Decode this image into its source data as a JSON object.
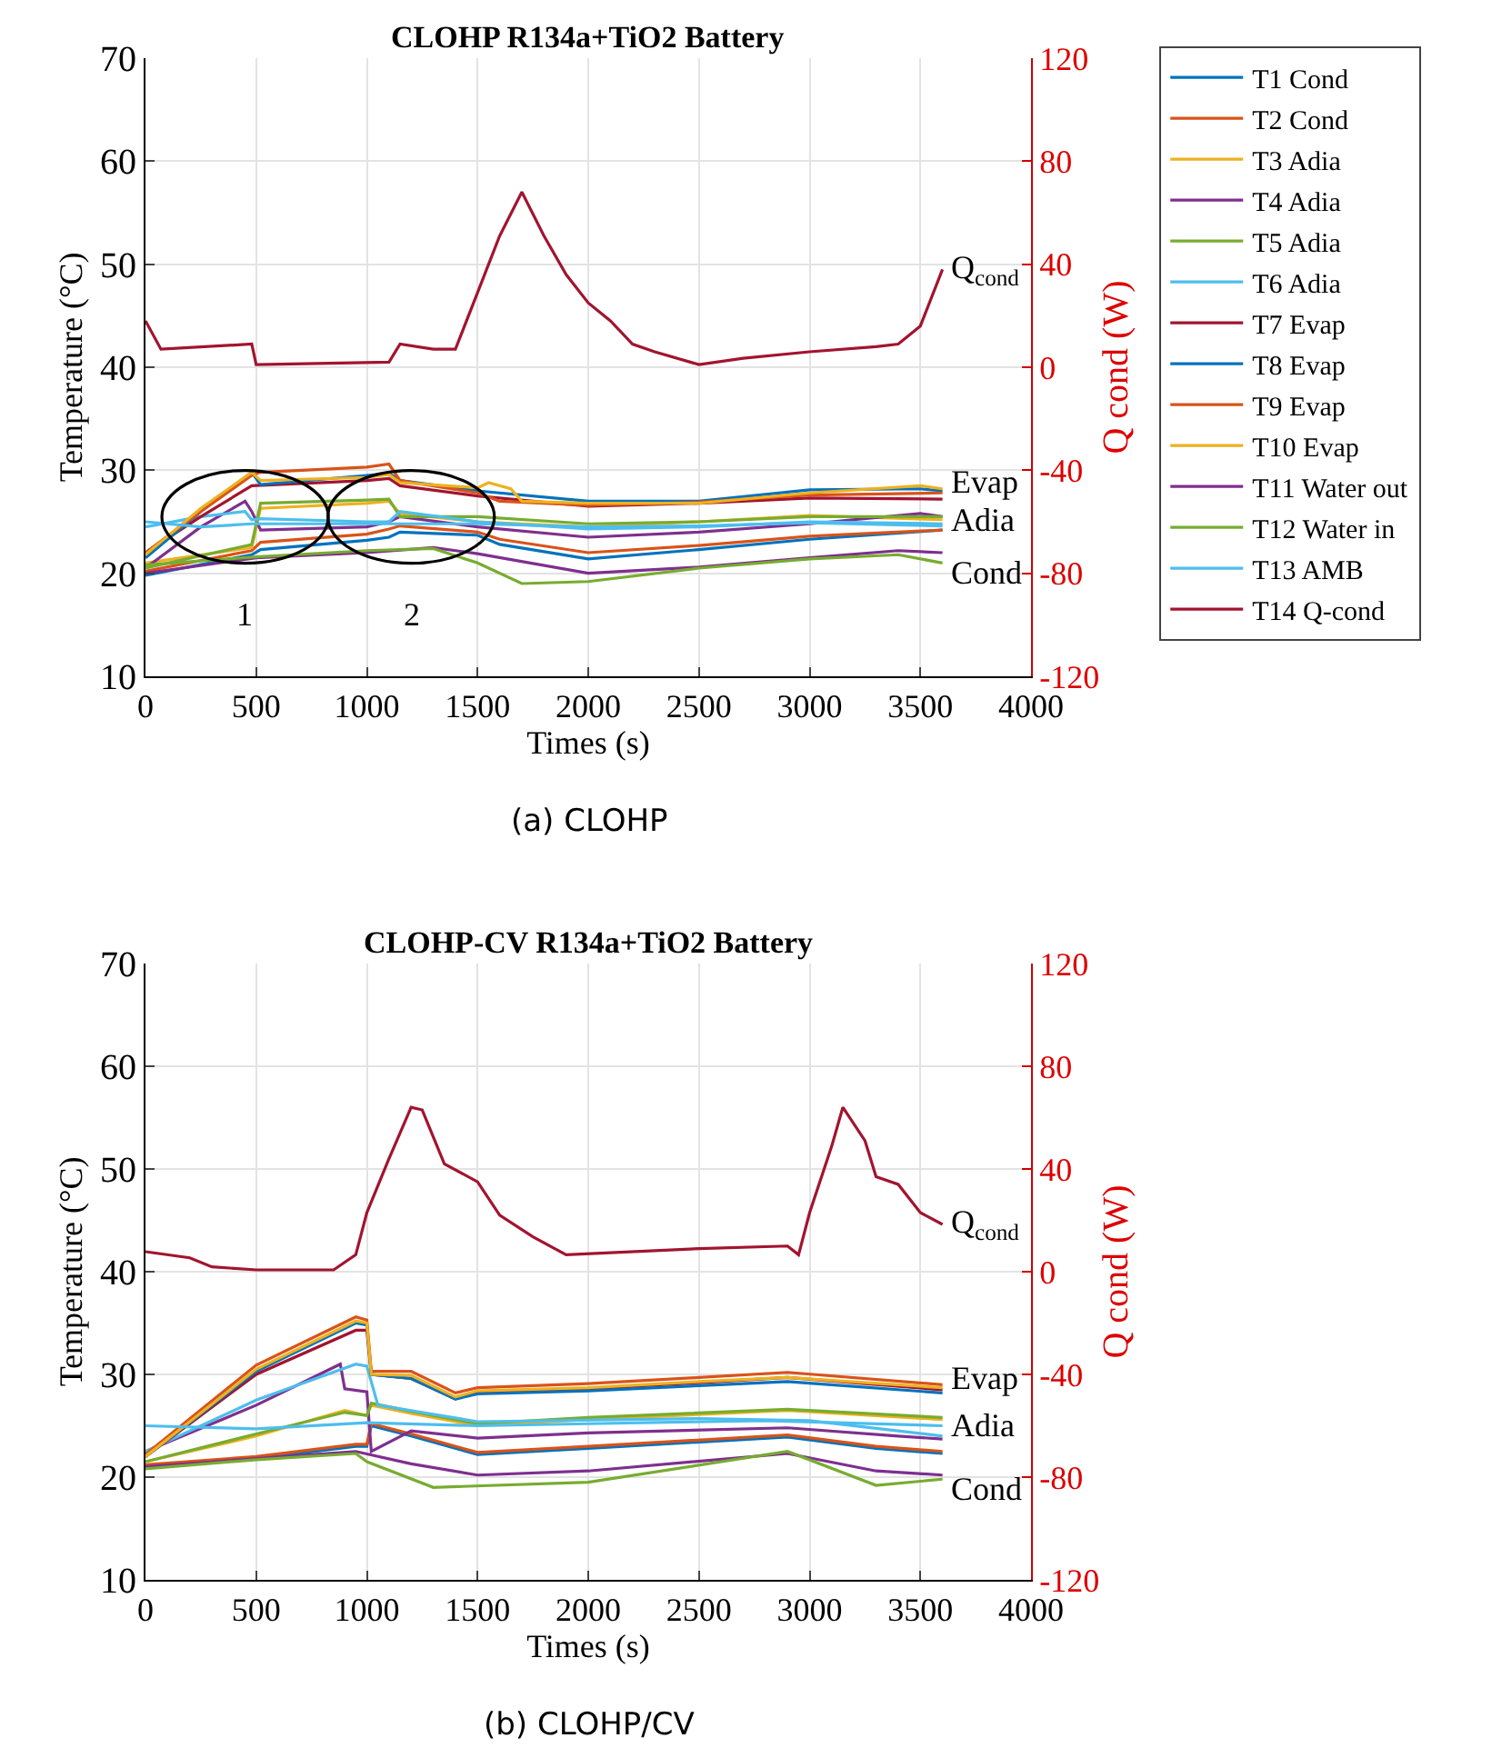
{
  "chart_data": [
    {
      "type": "line",
      "title": "CLOHP R134a+TiO2 Battery",
      "xlabel": "Times (s)",
      "ylabel": "Temperature (°C)",
      "y2label": "Q cond (W)",
      "xlim": [
        0,
        4000
      ],
      "xticks": [
        0,
        500,
        1000,
        1500,
        2000,
        2500,
        3000,
        3500,
        4000
      ],
      "ylim": [
        10,
        70
      ],
      "yticks": [
        10,
        20,
        30,
        40,
        50,
        60,
        70
      ],
      "y2lim": [
        -120,
        120
      ],
      "y2ticks": [
        -120,
        -80,
        -40,
        0,
        40,
        80,
        120
      ],
      "grid": true,
      "legend": "right",
      "marker": "none",
      "line_style": "solid",
      "series": [
        {
          "name": "T1 Cond",
          "color": "#0072bd",
          "x": [
            0,
            480,
            520,
            1000,
            1100,
            1150,
            1500,
            1600,
            2000,
            2500,
            3000,
            3600
          ],
          "values": [
            19.8,
            21.8,
            22.3,
            23.2,
            23.5,
            24,
            23.7,
            22.8,
            21.4,
            22.3,
            23.3,
            24.2
          ]
        },
        {
          "name": "T2 Cond",
          "color": "#d95319",
          "x": [
            0,
            480,
            520,
            1000,
            1100,
            1150,
            1500,
            1600,
            2000,
            2500,
            3000,
            3600
          ],
          "values": [
            20.2,
            22.2,
            23,
            23.8,
            24.3,
            24.6,
            24,
            23.3,
            22,
            22.7,
            23.6,
            24.2
          ]
        },
        {
          "name": "T3 Adia",
          "color": "#edb120",
          "x": [
            0,
            480,
            520,
            1000,
            1100,
            1150,
            1500,
            2000,
            2500,
            3000,
            3600
          ],
          "values": [
            21,
            22.5,
            26.3,
            26.8,
            27,
            25.8,
            25,
            24.5,
            25,
            25.6,
            25.2
          ]
        },
        {
          "name": "T4 Adia",
          "color": "#7e2f8e",
          "x": [
            0,
            250,
            450,
            480,
            520,
            1000,
            1100,
            1150,
            1500,
            2000,
            2500,
            3000,
            3500,
            3600
          ],
          "values": [
            20.5,
            24.5,
            27,
            26,
            24.2,
            24.5,
            25,
            25.5,
            24.5,
            23.5,
            24,
            24.8,
            25.8,
            25.5
          ]
        },
        {
          "name": "T5 Adia",
          "color": "#77ac30",
          "x": [
            0,
            480,
            520,
            1000,
            1100,
            1150,
            1500,
            2000,
            2500,
            3000,
            3600
          ],
          "values": [
            20.5,
            22.8,
            26.8,
            27.1,
            27.2,
            25.5,
            25.5,
            24.8,
            25,
            25.5,
            25.5
          ]
        },
        {
          "name": "T6 Adia",
          "color": "#4dbeee",
          "x": [
            0,
            250,
            450,
            480,
            520,
            1000,
            1100,
            1150,
            1500,
            2000,
            2500,
            3000,
            3600
          ],
          "values": [
            24.5,
            25.5,
            26,
            25.2,
            25.3,
            25,
            25,
            26,
            25,
            24.3,
            24.5,
            25,
            24.8
          ]
        },
        {
          "name": "T7 Evap",
          "color": "#a2142f",
          "x": [
            0,
            250,
            480,
            1000,
            1100,
            1150,
            1500,
            2000,
            2500,
            3000,
            3600
          ],
          "values": [
            22,
            25.5,
            28.5,
            29,
            29.2,
            28.5,
            27.5,
            26.5,
            26.8,
            27.3,
            27.2
          ]
        },
        {
          "name": "T8 Evap",
          "color": "#0072bd",
          "x": [
            0,
            250,
            480,
            520,
            1000,
            1100,
            1150,
            1500,
            2000,
            2500,
            3000,
            3500,
            3600
          ],
          "values": [
            21.5,
            26,
            29.8,
            28.6,
            29.5,
            29.7,
            29,
            28,
            27,
            27,
            28.1,
            28.2,
            28
          ]
        },
        {
          "name": "T9 Evap",
          "color": "#d95319",
          "x": [
            0,
            250,
            480,
            520,
            1000,
            1100,
            1150,
            1500,
            1600,
            2000,
            2500,
            3000,
            3600
          ],
          "values": [
            22,
            26,
            29.5,
            29.8,
            30.3,
            30.6,
            29,
            27.8,
            27,
            26.6,
            26.9,
            27.6,
            27.8
          ]
        },
        {
          "name": "T10 Evap",
          "color": "#edb120",
          "x": [
            0,
            250,
            480,
            520,
            1000,
            1100,
            1150,
            1500,
            1550,
            1650,
            1700,
            2000,
            2500,
            3000,
            3500,
            3600
          ],
          "values": [
            21.8,
            26.3,
            29.8,
            29,
            29.3,
            29.6,
            28.8,
            28.3,
            28.8,
            28.2,
            27,
            26.8,
            26.8,
            27.8,
            28.5,
            28.2
          ]
        },
        {
          "name": "T11 Water out",
          "color": "#7e2f8e",
          "x": [
            0,
            500,
            1000,
            1300,
            1500,
            2000,
            2500,
            3000,
            3400,
            3600
          ],
          "values": [
            20,
            21.5,
            22,
            22.5,
            21.9,
            20,
            20.6,
            21.5,
            22.2,
            22
          ]
        },
        {
          "name": "T12 Water in",
          "color": "#77ac30",
          "x": [
            0,
            500,
            1000,
            1300,
            1500,
            1700,
            2000,
            2500,
            3000,
            3400,
            3600
          ],
          "values": [
            20.8,
            21.6,
            22.2,
            22.4,
            21,
            19,
            19.2,
            20.5,
            21.4,
            21.8,
            21
          ]
        },
        {
          "name": "T13 AMB",
          "color": "#4dbeee",
          "x": [
            0,
            250,
            480,
            1000,
            1500,
            2000,
            2500,
            3000,
            3600
          ],
          "values": [
            25,
            24.5,
            24.8,
            24.8,
            24.8,
            24.5,
            24.6,
            24.9,
            24.6
          ]
        },
        {
          "name": "T14 Q-cond",
          "color": "#a2142f",
          "axis": "y2",
          "x": [
            0,
            70,
            480,
            500,
            1100,
            1150,
            1300,
            1400,
            1500,
            1600,
            1700,
            1800,
            1900,
            2000,
            2100,
            2200,
            2300,
            2500,
            2700,
            3000,
            3300,
            3400,
            3500,
            3600
          ],
          "values": [
            18,
            7,
            9,
            1,
            2,
            9,
            7,
            7,
            29,
            51,
            68,
            51,
            36,
            25,
            18,
            9,
            6,
            1,
            3.5,
            6,
            8,
            9,
            16,
            38
          ]
        }
      ],
      "annotations": [
        "Q$_{cond}$",
        "Evap",
        "Adia",
        "Cond",
        "1",
        "2",
        "(a) CLOHP"
      ]
    },
    {
      "type": "line",
      "title": "CLOHP-CV R134a+TiO2 Battery",
      "xlabel": "Times (s)",
      "ylabel": "Temperature (°C)",
      "y2label": "Q cond (W)",
      "xlim": [
        0,
        4000
      ],
      "xticks": [
        0,
        500,
        1000,
        1500,
        2000,
        2500,
        3000,
        3500,
        4000
      ],
      "ylim": [
        10,
        70
      ],
      "yticks": [
        10,
        20,
        30,
        40,
        50,
        60,
        70
      ],
      "y2lim": [
        -120,
        120
      ],
      "y2ticks": [
        -120,
        -80,
        -40,
        0,
        40,
        80,
        120
      ],
      "grid": true,
      "marker": "none",
      "line_style": "solid",
      "series": [
        {
          "color": "#0072bd",
          "x": [
            0,
            500,
            950,
            1000,
            1020,
            1200,
            1500,
            2000,
            2900,
            3300,
            3600
          ],
          "values": [
            21,
            21.8,
            23,
            23,
            25,
            24,
            22.2,
            22.8,
            23.9,
            22.8,
            22.3
          ]
        },
        {
          "color": "#d95319",
          "x": [
            0,
            500,
            950,
            1000,
            1020,
            1200,
            1500,
            2000,
            2900,
            3300,
            3600
          ],
          "values": [
            21.2,
            22,
            23.2,
            23.2,
            25.2,
            24.2,
            22.4,
            23,
            24.1,
            23,
            22.5
          ]
        },
        {
          "color": "#edb120",
          "x": [
            0,
            500,
            900,
            1000,
            1020,
            1200,
            1500,
            2000,
            2900,
            3600
          ],
          "values": [
            21.5,
            24,
            26.5,
            26,
            27,
            26.2,
            25,
            25.6,
            26.5,
            25.6
          ]
        },
        {
          "color": "#7e2f8e",
          "x": [
            0,
            500,
            880,
            900,
            1000,
            1020,
            1200,
            1500,
            2000,
            2900,
            3400,
            3600
          ],
          "values": [
            22.5,
            27,
            31,
            28.6,
            28.3,
            22.5,
            24.5,
            23.8,
            24.3,
            24.8,
            24,
            23.7
          ]
        },
        {
          "color": "#77ac30",
          "x": [
            0,
            500,
            900,
            1000,
            1020,
            1200,
            1500,
            2000,
            2900,
            3600
          ],
          "values": [
            21.5,
            24.2,
            26.3,
            26,
            27.2,
            26.4,
            25.2,
            25.8,
            26.6,
            25.8
          ]
        },
        {
          "color": "#4dbeee",
          "x": [
            0,
            500,
            950,
            1000,
            1050,
            1500,
            2500,
            3000,
            3600
          ],
          "values": [
            22.5,
            27.5,
            31,
            30.8,
            27,
            25.4,
            25.7,
            25.5,
            24
          ]
        },
        {
          "color": "#a2142f",
          "x": [
            0,
            500,
            950,
            1000,
            1020,
            1200,
            1400,
            1500,
            2000,
            2500,
            2900,
            3600
          ],
          "values": [
            22,
            30,
            34.3,
            34.3,
            30,
            29.6,
            27.6,
            28.3,
            28.6,
            29.2,
            29.7,
            28.5
          ]
        },
        {
          "color": "#0072bd",
          "x": [
            0,
            500,
            950,
            1000,
            1020,
            1200,
            1400,
            1500,
            2000,
            2500,
            2900,
            3600
          ],
          "values": [
            22,
            30.3,
            35,
            34.8,
            30,
            29.6,
            27.6,
            28.1,
            28.4,
            28.9,
            29.3,
            28.2
          ]
        },
        {
          "color": "#d95319",
          "x": [
            0,
            500,
            950,
            1000,
            1020,
            1200,
            1400,
            1500,
            2000,
            2500,
            2900,
            3600
          ],
          "values": [
            22.2,
            30.9,
            35.6,
            35.3,
            30.3,
            30.3,
            28.2,
            28.7,
            29.1,
            29.7,
            30.2,
            29
          ]
        },
        {
          "color": "#edb120",
          "x": [
            0,
            500,
            950,
            1000,
            1020,
            1200,
            1400,
            1500,
            2000,
            2500,
            2900,
            3600
          ],
          "values": [
            22,
            30.5,
            35.2,
            35,
            30,
            29.9,
            27.8,
            28.4,
            28.7,
            29.3,
            29.7,
            28.7
          ]
        },
        {
          "color": "#7e2f8e",
          "x": [
            0,
            500,
            950,
            1200,
            1500,
            2000,
            2900,
            3300,
            3600
          ],
          "values": [
            21,
            21.8,
            22.5,
            21.3,
            20.2,
            20.6,
            22.3,
            20.6,
            20.2
          ]
        },
        {
          "color": "#77ac30",
          "x": [
            0,
            500,
            950,
            1000,
            1300,
            2000,
            2900,
            3300,
            3600
          ],
          "values": [
            20.8,
            21.7,
            22.3,
            21.5,
            19,
            19.5,
            22.5,
            19.2,
            19.8
          ]
        },
        {
          "color": "#4dbeee",
          "x": [
            0,
            500,
            1000,
            1500,
            2000,
            2800,
            3600
          ],
          "values": [
            25,
            24.7,
            25.3,
            25,
            25.2,
            25.5,
            25
          ]
        },
        {
          "color": "#a2142f",
          "axis": "y2",
          "x": [
            0,
            200,
            300,
            500,
            850,
            950,
            1000,
            1100,
            1200,
            1250,
            1350,
            1500,
            1600,
            1750,
            1900,
            2500,
            2900,
            2950,
            3000,
            3100,
            3150,
            3250,
            3300,
            3400,
            3500,
            3600
          ],
          "values": [
            7.8,
            5.4,
            1.9,
            0.7,
            0.7,
            6.6,
            23,
            44,
            64,
            63,
            42,
            35,
            22,
            13.6,
            6.6,
            9,
            10,
            6.6,
            23,
            49,
            64,
            51,
            37,
            34,
            23,
            18.4
          ]
        }
      ],
      "annotations": [
        "Q$_{cond}$",
        "Evap",
        "Adia",
        "Cond",
        "(b) CLOHP/CV"
      ]
    }
  ]
}
